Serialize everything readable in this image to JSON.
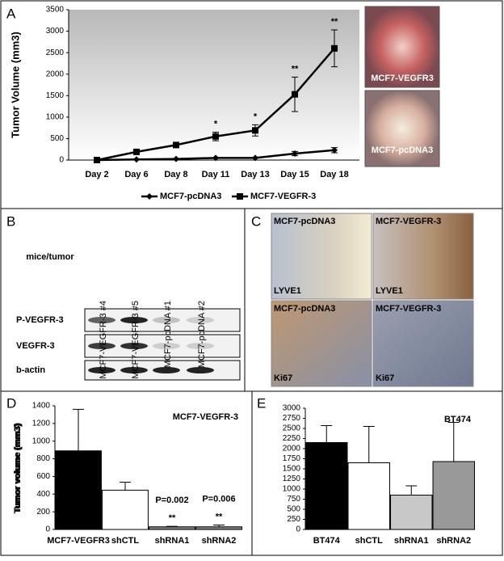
{
  "panel_labels": [
    "A",
    "B",
    "C",
    "D",
    "E"
  ],
  "chart_data": [
    {
      "type": "line",
      "ylabel": "Tumor Volume (mm3)",
      "categories": [
        "Day 2",
        "Day 6",
        "Day 8",
        "Day 11",
        "Day 13",
        "Day 15",
        "Day 18"
      ],
      "series": [
        {
          "name": "MCF7-pcDNA3",
          "color": "#000000",
          "marker": "diamond",
          "values": [
            0,
            15,
            25,
            50,
            50,
            150,
            230
          ],
          "errors": [
            0,
            0,
            0,
            0,
            0,
            50,
            60
          ]
        },
        {
          "name": "MCF7-VEGFR-3",
          "color": "#000000",
          "marker": "square",
          "values": [
            0,
            190,
            350,
            550,
            690,
            1530,
            2600
          ],
          "errors": [
            0,
            30,
            40,
            100,
            130,
            400,
            430
          ]
        }
      ],
      "annotations": [
        {
          "text": "*",
          "category": "Day 11"
        },
        {
          "text": "*",
          "category": "Day 13"
        },
        {
          "text": "**",
          "category": "Day 15"
        },
        {
          "text": "**",
          "category": "Day 18"
        }
      ],
      "ylim": [
        0,
        3500
      ],
      "yticks": [
        0,
        500,
        1000,
        1500,
        2000,
        2500,
        3000,
        3500
      ],
      "legend": "bottom"
    },
    {
      "type": "bar",
      "title": "MCF7-VEGFR-3",
      "ylabel": "Tumor volume (mm3)",
      "categories": [
        "MCF7-VEGFR3",
        "shCTL",
        "shRNA1",
        "shRNA2"
      ],
      "values": [
        890,
        445,
        30,
        30
      ],
      "errors": [
        470,
        90,
        5,
        20
      ],
      "colors": [
        "#000000",
        "#ffffff",
        "#808080",
        "#808080"
      ],
      "annotations": [
        {
          "text": "**",
          "category": "shRNA1"
        },
        {
          "text": "P=0.002",
          "category": "shRNA1"
        },
        {
          "text": "**",
          "category": "shRNA2"
        },
        {
          "text": "P=0.006",
          "category": "shRNA2"
        }
      ],
      "ylim": [
        0,
        1400
      ],
      "yticks": [
        0,
        200,
        400,
        600,
        800,
        1000,
        1200,
        1400
      ]
    },
    {
      "type": "bar",
      "title": "BT474",
      "ylabel": "Tumor volume (mm3)",
      "categories": [
        "BT474",
        "shCTL",
        "shRNA1",
        "shRNA2"
      ],
      "values": [
        2150,
        1650,
        850,
        1680
      ],
      "errors": [
        420,
        900,
        230,
        970
      ],
      "colors": [
        "#000000",
        "#ffffff",
        "#c8c8c8",
        "#999999"
      ],
      "ylim": [
        0,
        3000
      ],
      "yticks": [
        0,
        250,
        500,
        750,
        1000,
        1250,
        1500,
        1750,
        2000,
        2250,
        2500,
        2750,
        3000
      ]
    }
  ],
  "photos": [
    "MCF7-VEGFR3",
    "MCF7-pcDNA3"
  ],
  "blot": {
    "header": "mice/tumor",
    "lanes": [
      "MCF7-VEGFR-3 #4",
      "MCF7-VEGFR-3 #5",
      "MCF7-pcDNA #1",
      "MCF7-pcDNA #2"
    ],
    "rows": [
      "P-VEGFR-3",
      "VEGFR-3",
      "b-actin"
    ]
  },
  "histology": [
    [
      "MCF7-pcDNA3",
      "LYVE1"
    ],
    [
      "MCF7-VEGFR-3",
      "LYVE1"
    ],
    [
      "MCF7-pcDNA3",
      "Ki67"
    ],
    [
      "MCF7-VEGFR-3",
      "Ki67"
    ]
  ]
}
